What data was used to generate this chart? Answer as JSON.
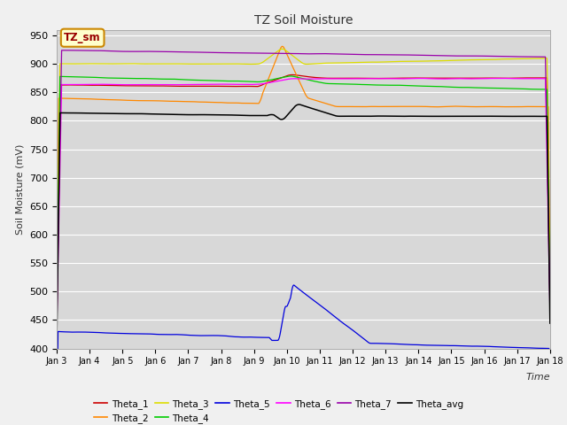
{
  "title": "TZ Soil Moisture",
  "ylabel": "Soil Moisture (mV)",
  "xlabel": "Time",
  "annotation": "TZ_sm",
  "ylim": [
    400,
    960
  ],
  "yticks": [
    400,
    450,
    500,
    550,
    600,
    650,
    700,
    750,
    800,
    850,
    900,
    950
  ],
  "x_labels": [
    "Jan 3",
    "Jan 4",
    "Jan 5",
    "Jan 6",
    "Jan 7",
    "Jan 8",
    "Jan 9",
    "Jan 10",
    "Jan 11",
    "Jan 12",
    "Jan 13",
    "Jan 14",
    "Jan 15",
    "Jan 16",
    "Jan 17",
    "Jan 18"
  ],
  "bg_color": "#d8d8d8",
  "fig_color": "#f0f0f0",
  "colors": {
    "Theta_1": "#cc0000",
    "Theta_2": "#ff8800",
    "Theta_3": "#dddd00",
    "Theta_4": "#00cc00",
    "Theta_5": "#0000dd",
    "Theta_6": "#ff00ff",
    "Theta_7": "#9900aa",
    "Theta_avg": "#000000"
  },
  "legend_order": [
    "Theta_1",
    "Theta_2",
    "Theta_3",
    "Theta_4",
    "Theta_5",
    "Theta_6",
    "Theta_7",
    "Theta_avg"
  ]
}
